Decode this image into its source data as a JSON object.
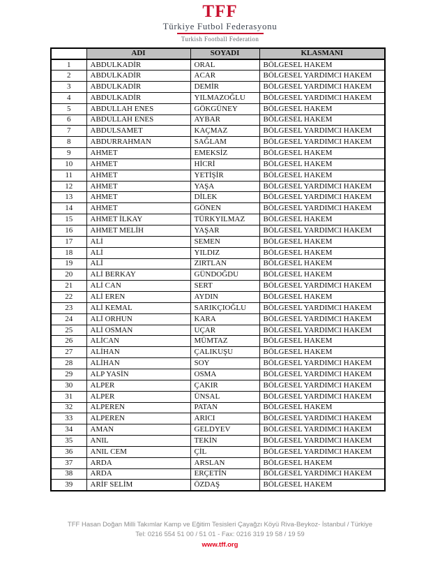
{
  "logo": {
    "acronym": "TFF",
    "name_tr": "Türkiye Futbol Federasyonu",
    "name_en": "Turkish Football Federation"
  },
  "table": {
    "headers": [
      "",
      "ADI",
      "SOYADI",
      "KLASMANI"
    ],
    "rows": [
      {
        "no": "1",
        "adi": "ABDULKADİR",
        "soyadi": "ORAL",
        "klasmani": "BÖLGESEL HAKEM"
      },
      {
        "no": "2",
        "adi": "ABDULKADİR",
        "soyadi": "ACAR",
        "klasmani": "BÖLGESEL YARDIMCI HAKEM"
      },
      {
        "no": "3",
        "adi": "ABDULKADİR",
        "soyadi": "DEMİR",
        "klasmani": "BÖLGESEL YARDIMCI HAKEM"
      },
      {
        "no": "4",
        "adi": "ABDULKADİR",
        "soyadi": "YILMAZOĞLU",
        "klasmani": "BÖLGESEL YARDIMCI HAKEM"
      },
      {
        "no": "5",
        "adi": "ABDULLAH ENES",
        "soyadi": "GÖKGÜNEY",
        "klasmani": "BÖLGESEL HAKEM"
      },
      {
        "no": "6",
        "adi": "ABDULLAH ENES",
        "soyadi": "AYBAR",
        "klasmani": "BÖLGESEL HAKEM"
      },
      {
        "no": "7",
        "adi": "ABDULSAMET",
        "soyadi": "KAÇMAZ",
        "klasmani": "BÖLGESEL YARDIMCI HAKEM"
      },
      {
        "no": "8",
        "adi": "ABDURRAHMAN",
        "soyadi": "SAĞLAM",
        "klasmani": "BÖLGESEL YARDIMCI HAKEM"
      },
      {
        "no": "9",
        "adi": "AHMET",
        "soyadi": "EMEKSİZ",
        "klasmani": "BÖLGESEL HAKEM"
      },
      {
        "no": "10",
        "adi": "AHMET",
        "soyadi": "HİCRİ",
        "klasmani": "BÖLGESEL HAKEM"
      },
      {
        "no": "11",
        "adi": "AHMET",
        "soyadi": "YETİŞİR",
        "klasmani": "BÖLGESEL HAKEM"
      },
      {
        "no": "12",
        "adi": "AHMET",
        "soyadi": "YAŞA",
        "klasmani": "BÖLGESEL YARDIMCI HAKEM"
      },
      {
        "no": "13",
        "adi": "AHMET",
        "soyadi": "DİLEK",
        "klasmani": "BÖLGESEL YARDIMCI HAKEM"
      },
      {
        "no": "14",
        "adi": "AHMET",
        "soyadi": "GÖNEN",
        "klasmani": "BÖLGESEL YARDIMCI HAKEM"
      },
      {
        "no": "15",
        "adi": "AHMET İLKAY",
        "soyadi": "TÜRKYILMAZ",
        "klasmani": "BÖLGESEL HAKEM"
      },
      {
        "no": "16",
        "adi": "AHMET MELİH",
        "soyadi": "YAŞAR",
        "klasmani": "BÖLGESEL YARDIMCI HAKEM"
      },
      {
        "no": "17",
        "adi": "ALİ",
        "soyadi": "SEMEN",
        "klasmani": "BÖLGESEL HAKEM"
      },
      {
        "no": "18",
        "adi": "ALİ",
        "soyadi": "YILDIZ",
        "klasmani": "BÖLGESEL HAKEM"
      },
      {
        "no": "19",
        "adi": "ALİ",
        "soyadi": "ZIRTLAN",
        "klasmani": "BÖLGESEL HAKEM"
      },
      {
        "no": "20",
        "adi": "ALİ BERKAY",
        "soyadi": "GÜNDOĞDU",
        "klasmani": "BÖLGESEL HAKEM"
      },
      {
        "no": "21",
        "adi": "ALİ CAN",
        "soyadi": "SERT",
        "klasmani": "BÖLGESEL YARDIMCI HAKEM"
      },
      {
        "no": "22",
        "adi": "ALİ EREN",
        "soyadi": "AYDIN",
        "klasmani": "BÖLGESEL HAKEM"
      },
      {
        "no": "23",
        "adi": "ALİ KEMAL",
        "soyadi": "SARIKÇIOĞLU",
        "klasmani": "BÖLGESEL YARDIMCI HAKEM"
      },
      {
        "no": "24",
        "adi": "ALİ ORHUN",
        "soyadi": "KARA",
        "klasmani": "BÖLGESEL YARDIMCI HAKEM"
      },
      {
        "no": "25",
        "adi": "ALİ OSMAN",
        "soyadi": "UÇAR",
        "klasmani": "BÖLGESEL YARDIMCI HAKEM"
      },
      {
        "no": "26",
        "adi": "ALİCAN",
        "soyadi": "MÜMTAZ",
        "klasmani": "BÖLGESEL HAKEM"
      },
      {
        "no": "27",
        "adi": "ALİHAN",
        "soyadi": "ÇALIKUŞU",
        "klasmani": "BÖLGESEL HAKEM"
      },
      {
        "no": "28",
        "adi": "ALİHAN",
        "soyadi": "SOY",
        "klasmani": "BÖLGESEL YARDIMCI HAKEM"
      },
      {
        "no": "29",
        "adi": "ALP YASİN",
        "soyadi": "OSMA",
        "klasmani": "BÖLGESEL YARDIMCI HAKEM"
      },
      {
        "no": "30",
        "adi": "ALPER",
        "soyadi": "ÇAKIR",
        "klasmani": "BÖLGESEL YARDIMCI HAKEM"
      },
      {
        "no": "31",
        "adi": "ALPER",
        "soyadi": "ÜNSAL",
        "klasmani": "BÖLGESEL YARDIMCI HAKEM"
      },
      {
        "no": "32",
        "adi": "ALPEREN",
        "soyadi": "PATAN",
        "klasmani": "BÖLGESEL HAKEM"
      },
      {
        "no": "33",
        "adi": "ALPEREN",
        "soyadi": "ARICI",
        "klasmani": "BÖLGESEL YARDIMCI HAKEM"
      },
      {
        "no": "34",
        "adi": "AMAN",
        "soyadi": "GELDYEV",
        "klasmani": "BÖLGESEL YARDIMCI HAKEM"
      },
      {
        "no": "35",
        "adi": "ANIL",
        "soyadi": "TEKİN",
        "klasmani": "BÖLGESEL YARDIMCI HAKEM"
      },
      {
        "no": "36",
        "adi": "ANIL CEM",
        "soyadi": "ÇİL",
        "klasmani": "BÖLGESEL YARDIMCI HAKEM"
      },
      {
        "no": "37",
        "adi": "ARDA",
        "soyadi": "ARSLAN",
        "klasmani": "BÖLGESEL HAKEM"
      },
      {
        "no": "38",
        "adi": "ARDA",
        "soyadi": "ERÇETİN",
        "klasmani": "BÖLGESEL YARDIMCI HAKEM"
      },
      {
        "no": "39",
        "adi": "ARİF SELİM",
        "soyadi": "ÖZDAŞ",
        "klasmani": "BÖLGESEL HAKEM"
      }
    ]
  },
  "footer": {
    "address": "TFF Hasan Doğan Milli Takımlar Kamp ve Eğitim Tesisleri Çayağzı Köyü Riva-Beykoz- İstanbul / Türkiye",
    "tel_fax": "Tel: 0216 554 51 00 / 51 01 - Fax: 0216 319 19 58 / 19 59",
    "website": "www.tff.org"
  },
  "colors": {
    "brand_red": "#c8102e",
    "footer_link_red": "#e2001a",
    "header_bg": "#c0c0c0",
    "footer_gray": "#8d8d8d"
  }
}
